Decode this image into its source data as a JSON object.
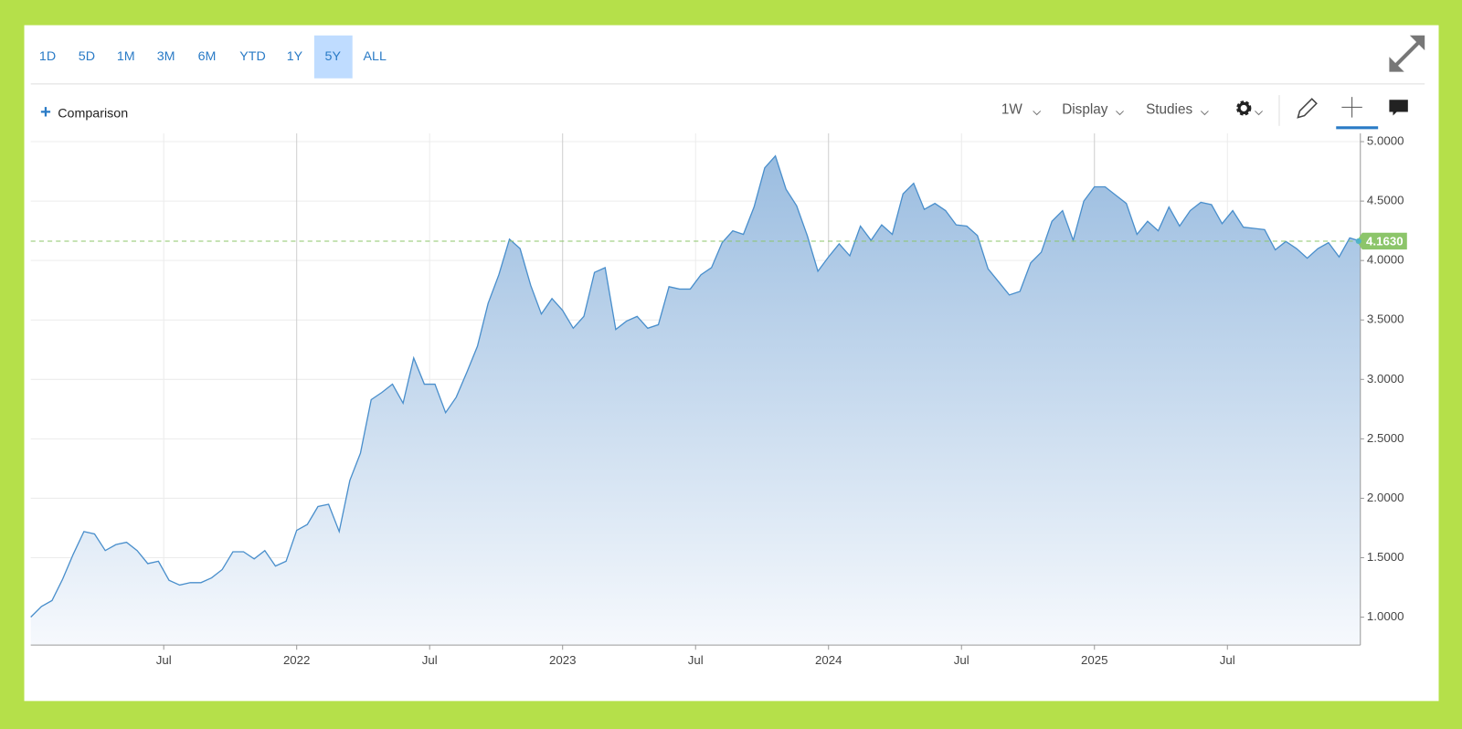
{
  "toolbar": {
    "ranges": [
      "1D",
      "5D",
      "1M",
      "3M",
      "6M",
      "YTD",
      "1Y",
      "5Y",
      "ALL"
    ],
    "comparison": "Comparison",
    "interval": "1W",
    "display": "Display",
    "studies": "Studies"
  },
  "chart_data": {
    "type": "area",
    "color": "#4a8fcc",
    "grid": true,
    "x": [
      2021,
      2021.04,
      2021.08,
      2021.12,
      2021.16,
      2021.2,
      2021.24,
      2021.28,
      2021.32,
      2021.36,
      2021.4,
      2021.44,
      2021.48,
      2021.52,
      2021.56,
      2021.6,
      2021.64,
      2021.68,
      2021.72,
      2021.76,
      2021.8,
      2021.84,
      2021.88,
      2021.92,
      2021.96,
      2022,
      2022.04,
      2022.08,
      2022.12,
      2022.16,
      2022.2,
      2022.24,
      2022.28,
      2022.32,
      2022.36,
      2022.4,
      2022.44,
      2022.48,
      2022.52,
      2022.56,
      2022.6,
      2022.64,
      2022.68,
      2022.72,
      2022.76,
      2022.8,
      2022.84,
      2022.88,
      2022.92,
      2022.96,
      2023,
      2023.04,
      2023.08,
      2023.12,
      2023.16,
      2023.2,
      2023.24,
      2023.28,
      2023.32,
      2023.36,
      2023.4,
      2023.44,
      2023.48,
      2023.52,
      2023.56,
      2023.6,
      2023.64,
      2023.68,
      2023.72,
      2023.76,
      2023.8,
      2023.84,
      2023.88,
      2023.92,
      2023.96,
      2024,
      2024.04,
      2024.08,
      2024.12,
      2024.16,
      2024.2,
      2024.24,
      2024.28,
      2024.32,
      2024.36,
      2024.4,
      2024.44,
      2024.48,
      2024.52,
      2024.56,
      2024.6,
      2024.64,
      2024.68,
      2024.72,
      2024.76,
      2024.8,
      2024.84,
      2024.88,
      2024.92,
      2024.96,
      2025,
      2025.04,
      2025.08,
      2025.12,
      2025.16,
      2025.2,
      2025.24,
      2025.28,
      2025.32,
      2025.36,
      2025.4,
      2025.44,
      2025.48,
      2025.52,
      2025.56,
      2025.6,
      2025.64,
      2025.68,
      2025.72,
      2025.76,
      2025.8,
      2025.84,
      2025.88,
      2025.92,
      2025.96,
      2026
    ],
    "values": [
      1.0,
      1.09,
      1.14,
      1.32,
      1.53,
      1.72,
      1.7,
      1.56,
      1.61,
      1.63,
      1.56,
      1.45,
      1.47,
      1.31,
      1.27,
      1.29,
      1.29,
      1.33,
      1.4,
      1.55,
      1.55,
      1.49,
      1.56,
      1.43,
      1.47,
      1.73,
      1.78,
      1.93,
      1.95,
      1.72,
      2.15,
      2.38,
      2.83,
      2.89,
      2.96,
      2.8,
      3.18,
      2.96,
      2.96,
      2.72,
      2.85,
      3.06,
      3.28,
      3.64,
      3.88,
      4.18,
      4.1,
      3.79,
      3.55,
      3.68,
      3.58,
      3.43,
      3.53,
      3.9,
      3.94,
      3.42,
      3.49,
      3.53,
      3.43,
      3.46,
      3.78,
      3.76,
      3.76,
      3.88,
      3.94,
      4.15,
      4.25,
      4.22,
      4.45,
      4.78,
      4.88,
      4.6,
      4.46,
      4.21,
      3.91,
      4.03,
      4.14,
      4.04,
      4.29,
      4.17,
      4.3,
      4.22,
      4.56,
      4.65,
      4.43,
      4.48,
      4.42,
      4.3,
      4.29,
      4.21,
      3.93,
      3.82,
      3.71,
      3.74,
      3.98,
      4.07,
      4.33,
      4.42,
      4.17,
      4.5,
      4.62,
      4.62,
      4.55,
      4.48,
      4.22,
      4.33,
      4.25,
      4.45,
      4.29,
      4.42,
      4.49,
      4.47,
      4.31,
      4.42,
      4.28,
      4.27,
      4.26,
      4.09,
      4.16,
      4.1,
      4.02,
      4.1,
      4.15,
      4.03,
      4.19,
      4.163
    ],
    "xlim": [
      2021,
      2026
    ],
    "xticks": [
      {
        "value": 2021.5,
        "label": "Jul"
      },
      2022,
      {
        "value": 2022.5,
        "label": "Jul"
      },
      2023,
      {
        "value": 2023.5,
        "label": "Jul"
      },
      2024,
      {
        "value": 2024.5,
        "label": "Jul"
      },
      2025,
      {
        "value": 2025.5,
        "label": "Jul"
      }
    ],
    "ylim": [
      0.765,
      5.07
    ],
    "yticks": [
      {
        "value": 1.0,
        "label": "1.0000"
      },
      {
        "value": 1.5,
        "label": "1.5000"
      },
      {
        "value": 2.0,
        "label": "2.0000"
      },
      {
        "value": 2.5,
        "label": "2.5000"
      },
      {
        "value": 3.0,
        "label": "3.0000"
      },
      {
        "value": 3.5,
        "label": "3.5000"
      },
      {
        "value": 4.0,
        "label": "4.0000"
      },
      {
        "value": 4.5,
        "label": "4.5000"
      },
      {
        "value": 5.0,
        "label": "5.0000"
      }
    ],
    "reference_line": {
      "value": 4.163,
      "label": "4.1630",
      "color": "#8cc56a"
    }
  }
}
